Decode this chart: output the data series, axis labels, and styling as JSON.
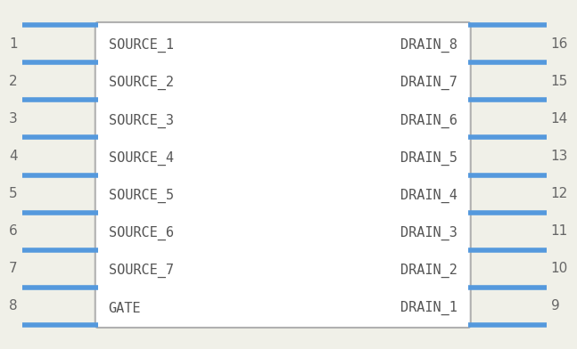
{
  "body_color": "#ffffff",
  "body_edge_color": "#b0b0b0",
  "pin_color": "#5599dd",
  "pin_linewidth": 4,
  "bg_color": "#f0f0e8",
  "left_pins": [
    {
      "num": 1,
      "label": "SOURCE_1"
    },
    {
      "num": 2,
      "label": "SOURCE_2"
    },
    {
      "num": 3,
      "label": "SOURCE_3"
    },
    {
      "num": 4,
      "label": "SOURCE_4"
    },
    {
      "num": 5,
      "label": "SOURCE_5"
    },
    {
      "num": 6,
      "label": "SOURCE_6"
    },
    {
      "num": 7,
      "label": "SOURCE_7"
    },
    {
      "num": 8,
      "label": "GATE"
    }
  ],
  "right_pins": [
    {
      "num": 16,
      "label": "DRAIN_8"
    },
    {
      "num": 15,
      "label": "DRAIN_7"
    },
    {
      "num": 14,
      "label": "DRAIN_6"
    },
    {
      "num": 13,
      "label": "DRAIN_5"
    },
    {
      "num": 12,
      "label": "DRAIN_4"
    },
    {
      "num": 11,
      "label": "DRAIN_3"
    },
    {
      "num": 10,
      "label": "DRAIN_2"
    },
    {
      "num": 9,
      "label": "DRAIN_1"
    }
  ],
  "label_font_size": 11,
  "num_font_size": 11,
  "text_color": "#666666",
  "label_color": "#555555"
}
